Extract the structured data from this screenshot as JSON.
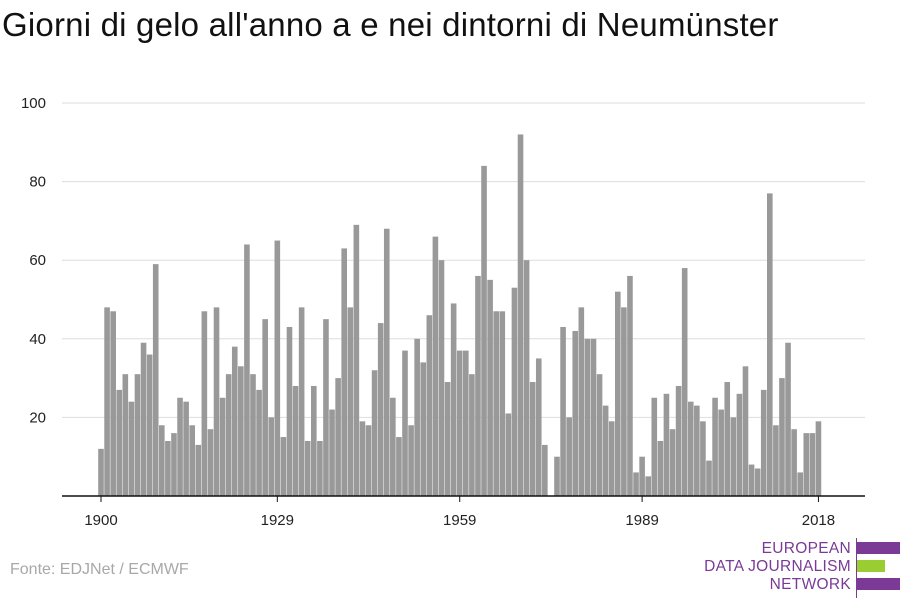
{
  "title": "Giorni di gelo all'anno a e nei dintorni di Neumünster",
  "source": "Fonte: EDJNet / ECMWF",
  "logo": {
    "line1": "EUROPEAN",
    "line2": "DATA JOURNALISM",
    "line3": "NETWORK",
    "colors": {
      "text": "#7a3a96",
      "bar_top": "#7a3a96",
      "bar_mid": "#9acd32",
      "bar_bottom": "#7a3a96"
    }
  },
  "colors": {
    "bar": "#999999",
    "grid": "#dddddd",
    "axis": "#111111"
  },
  "chart_data": {
    "type": "bar",
    "title": "Giorni di gelo all'anno a e nei dintorni di Neumünster",
    "xlabel": "",
    "ylabel": "",
    "ylim": [
      0,
      100
    ],
    "yticks": [
      20,
      40,
      60,
      80,
      100
    ],
    "xtick_labels": [
      "1900",
      "1929",
      "1959",
      "1989",
      "2018"
    ],
    "grid": true,
    "x": [
      1900,
      1901,
      1902,
      1903,
      1904,
      1905,
      1906,
      1907,
      1908,
      1909,
      1910,
      1911,
      1912,
      1913,
      1914,
      1915,
      1916,
      1917,
      1918,
      1919,
      1920,
      1921,
      1922,
      1923,
      1924,
      1925,
      1926,
      1927,
      1928,
      1929,
      1930,
      1931,
      1932,
      1933,
      1934,
      1935,
      1936,
      1937,
      1938,
      1939,
      1940,
      1941,
      1942,
      1943,
      1944,
      1945,
      1946,
      1947,
      1948,
      1949,
      1950,
      1951,
      1952,
      1953,
      1954,
      1955,
      1956,
      1957,
      1958,
      1959,
      1960,
      1961,
      1962,
      1963,
      1964,
      1965,
      1966,
      1967,
      1968,
      1969,
      1970,
      1971,
      1972,
      1973,
      1974,
      1975,
      1976,
      1977,
      1978,
      1979,
      1980,
      1981,
      1982,
      1983,
      1984,
      1985,
      1986,
      1987,
      1988,
      1989,
      1990,
      1991,
      1992,
      1993,
      1994,
      1995,
      1996,
      1997,
      1998,
      1999,
      2000,
      2001,
      2002,
      2003,
      2004,
      2005,
      2006,
      2007,
      2008,
      2009,
      2010,
      2011,
      2012,
      2013,
      2014,
      2015,
      2016,
      2017,
      2018
    ],
    "values": [
      12,
      48,
      47,
      27,
      31,
      24,
      31,
      39,
      36,
      59,
      18,
      14,
      16,
      25,
      24,
      18,
      13,
      47,
      17,
      48,
      25,
      31,
      38,
      33,
      64,
      31,
      27,
      45,
      20,
      65,
      15,
      43,
      28,
      48,
      14,
      28,
      14,
      45,
      22,
      30,
      63,
      48,
      69,
      19,
      18,
      32,
      44,
      68,
      25,
      15,
      37,
      18,
      40,
      34,
      46,
      66,
      60,
      29,
      49,
      37,
      37,
      31,
      56,
      84,
      55,
      47,
      47,
      21,
      53,
      92,
      60,
      29,
      35,
      13,
      0,
      10,
      43,
      20,
      42,
      48,
      40,
      40,
      31,
      23,
      19,
      52,
      48,
      56,
      6,
      10,
      5,
      25,
      14,
      26,
      17,
      28,
      58,
      24,
      23,
      19,
      9,
      25,
      22,
      29,
      20,
      26,
      33,
      8,
      7,
      27,
      77,
      18,
      30,
      39,
      17,
      6,
      16,
      16,
      19
    ]
  }
}
